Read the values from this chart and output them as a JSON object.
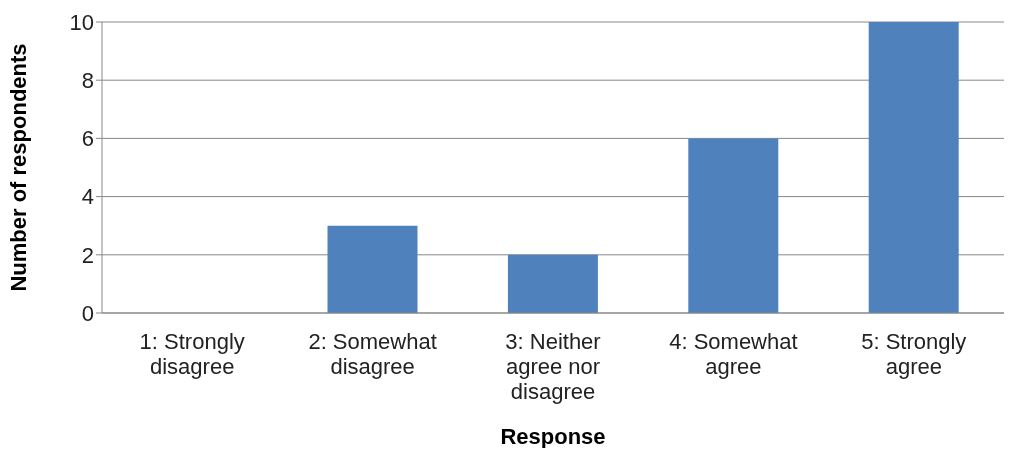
{
  "chart_data": {
    "type": "bar",
    "xlabel": "Response",
    "ylabel": "Number of respondents",
    "categories": [
      "1: Strongly disagree",
      "2: Somewhat disagree",
      "3: Neither agree nor disagree",
      "4: Somewhat agree",
      "5: Strongly agree"
    ],
    "values": [
      0,
      3,
      2,
      6,
      10
    ],
    "color": "#4f81bd",
    "ylim": [
      0,
      10
    ],
    "yticks": [
      0,
      2,
      4,
      6,
      8,
      10
    ],
    "grid": "y"
  }
}
